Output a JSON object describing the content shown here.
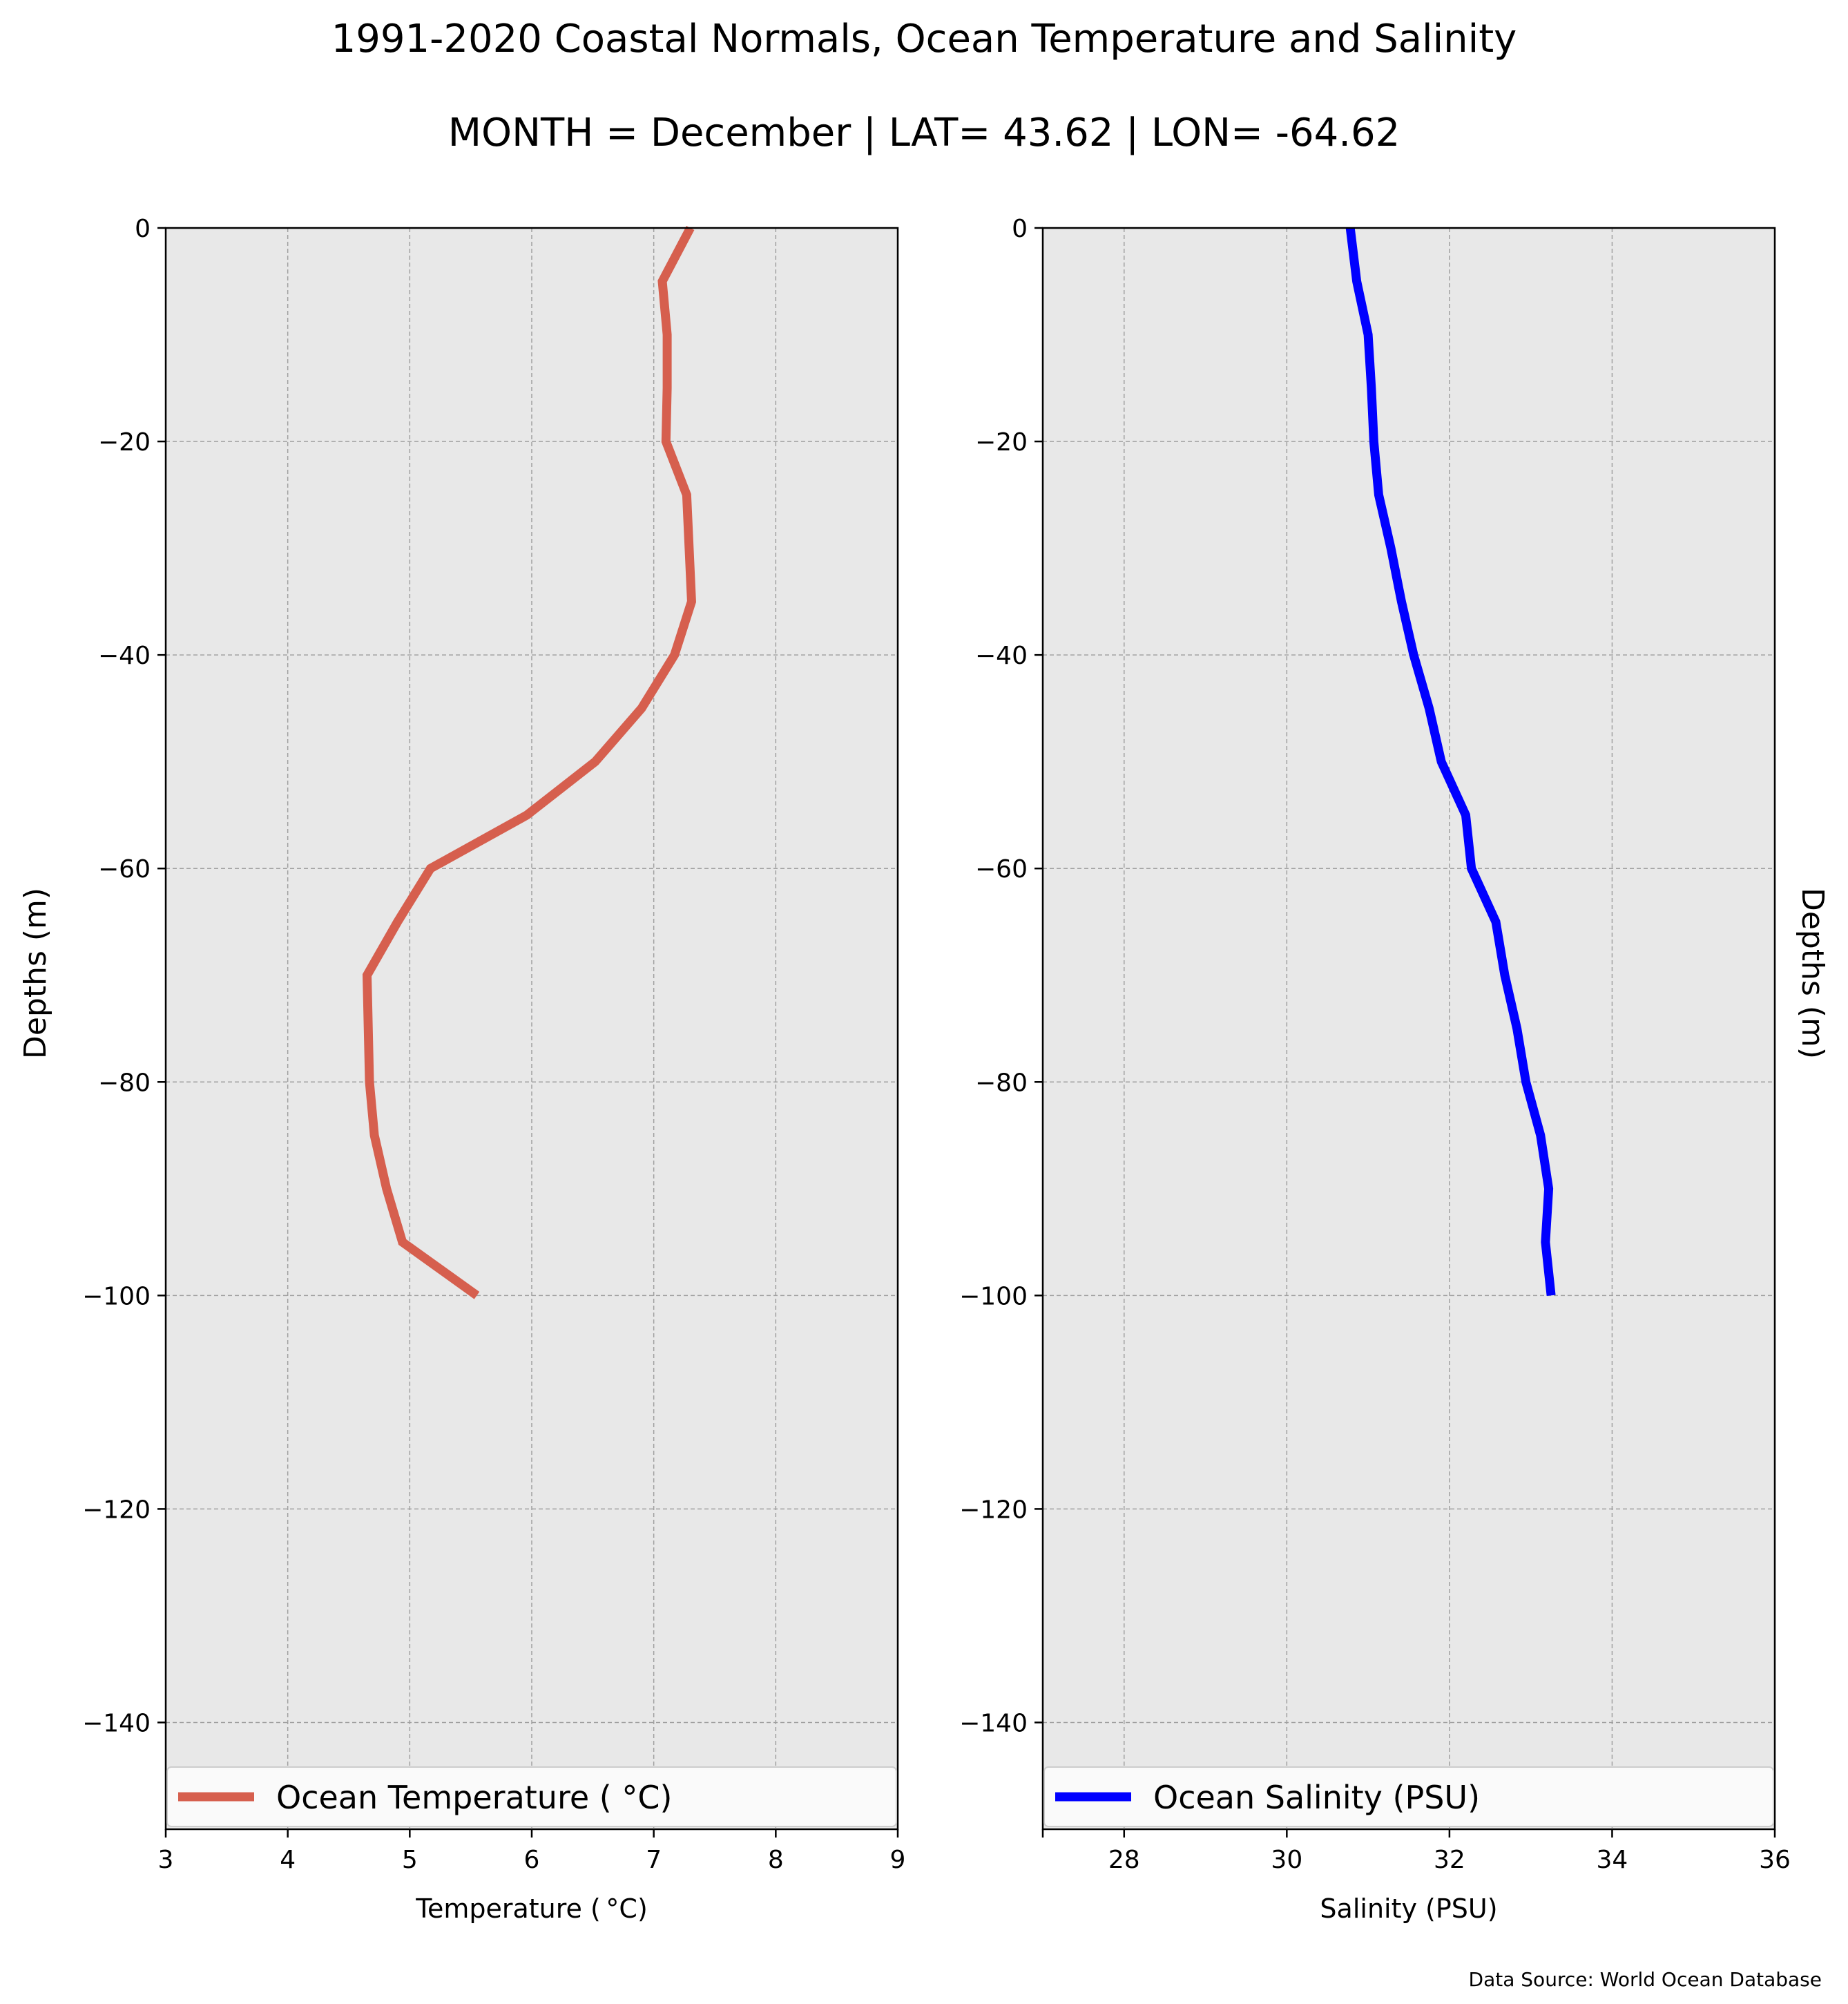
{
  "figure": {
    "title": "1991-2020 Coastal Normals, Ocean Temperature and Salinity",
    "subtitle": "MONTH = December | LAT= 43.62 | LON= -64.62",
    "source": "Data Source: World Ocean Database"
  },
  "colors": {
    "temperature": "#d65f4e",
    "salinity": "#0000ff",
    "axes_bg": "#e8e8e8",
    "grid": "#a0a0a0"
  },
  "chart_data": [
    {
      "type": "line",
      "xlabel": "Temperature ($^\\circ$C)",
      "xlabel_display": "Temperature ( °C)",
      "ylabel": "Depths (m)",
      "xlim": [
        3,
        9
      ],
      "ylim": [
        -150,
        0
      ],
      "xticks": [
        3,
        4,
        5,
        6,
        7,
        8,
        9
      ],
      "xtick_labels": [
        "3",
        "4",
        "5",
        "6",
        "7",
        "8",
        "9"
      ],
      "yticks": [
        0,
        -20,
        -40,
        -60,
        -80,
        -100,
        -120,
        -140
      ],
      "ytick_labels": [
        "0",
        "−20",
        "−40",
        "−60",
        "−80",
        "−100",
        "−120",
        "−140"
      ],
      "grid": true,
      "legend_position": "bottom",
      "series": [
        {
          "name": "Ocean Temperature ( °C)",
          "x": [
            7.3,
            7.07,
            7.11,
            7.11,
            7.1,
            7.27,
            7.29,
            7.31,
            7.17,
            6.9,
            6.52,
            5.96,
            5.17,
            4.9,
            4.65,
            4.66,
            4.67,
            4.71,
            4.81,
            4.94,
            5.55
          ],
          "y": [
            0,
            -5,
            -10,
            -15,
            -20,
            -25,
            -30,
            -35,
            -40,
            -45,
            -50,
            -55,
            -60,
            -65,
            -70,
            -75,
            -80,
            -85,
            -90,
            -95,
            -100
          ]
        }
      ]
    },
    {
      "type": "line",
      "xlabel": "Salinity (PSU)",
      "ylabel": "Depths (m)",
      "ylabel_side": "right",
      "xlim": [
        27,
        36
      ],
      "ylim": [
        -150,
        0
      ],
      "xticks": [
        28,
        30,
        32,
        34,
        36
      ],
      "xtick_labels": [
        "28",
        "30",
        "32",
        "34",
        "36"
      ],
      "yticks": [
        0,
        -20,
        -40,
        -60,
        -80,
        -100,
        -120,
        -140
      ],
      "ytick_labels": [
        "0",
        "−20",
        "−40",
        "−60",
        "−80",
        "−100",
        "−120",
        "−140"
      ],
      "grid": true,
      "legend_position": "bottom",
      "series": [
        {
          "name": "Ocean Salinity (PSU)",
          "x": [
            30.78,
            30.86,
            31.0,
            31.04,
            31.07,
            31.13,
            31.28,
            31.41,
            31.56,
            31.75,
            31.9,
            32.2,
            32.27,
            32.57,
            32.68,
            32.83,
            32.94,
            33.12,
            33.22,
            33.18,
            33.25
          ],
          "y": [
            0,
            -5,
            -10,
            -15,
            -20,
            -25,
            -30,
            -35,
            -40,
            -45,
            -50,
            -55,
            -60,
            -65,
            -70,
            -75,
            -80,
            -85,
            -90,
            -95,
            -100
          ]
        }
      ]
    }
  ]
}
